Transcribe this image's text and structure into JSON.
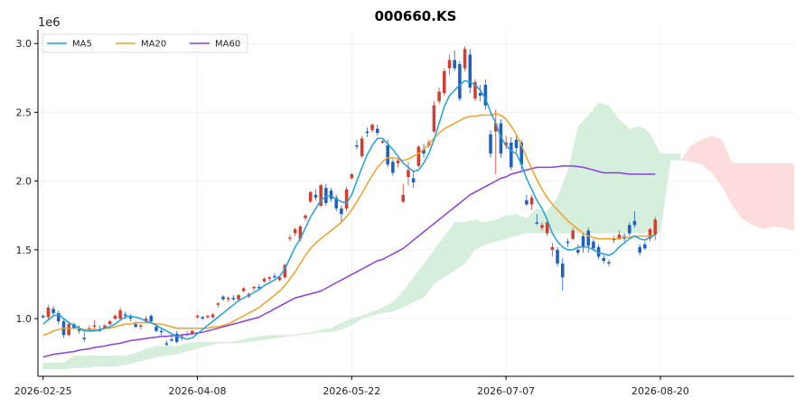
{
  "chart_data": {
    "type": "candlestick",
    "title": "000660.KS",
    "y_scale_label": "1e6",
    "ylim": [
      0.58,
      3.1
    ],
    "y_ticks": [
      1.0,
      1.5,
      2.0,
      2.5,
      3.0
    ],
    "y_tick_labels": [
      "1.0",
      "1.5",
      "2.0",
      "2.5",
      "3.0"
    ],
    "x_ticks": [
      "2026-02-25",
      "2026-04-08",
      "2026-05-22",
      "2026-07-07",
      "2026-08-20"
    ],
    "x_tick_index": [
      0,
      30,
      60,
      90,
      120
    ],
    "x_range": [
      -1,
      146
    ],
    "grid": true,
    "legend": {
      "placement": "top-left",
      "entries": [
        "MA5",
        "MA20",
        "MA60"
      ]
    },
    "colors": {
      "up": "#d23f31",
      "down": "#1f5fbf",
      "ma5": "#1aa3e0",
      "ma20": "#f0a020",
      "ma60": "#8a3fe0",
      "cloud_green": "#d6efdc",
      "cloud_red": "#fcdcdc"
    },
    "ohlc": [
      [
        1.02,
        1.03,
        1.0,
        1.01
      ],
      [
        1.01,
        1.1,
        0.99,
        1.08
      ],
      [
        1.07,
        1.09,
        1.02,
        1.04
      ],
      [
        1.04,
        1.06,
        0.96,
        0.98
      ],
      [
        0.98,
        1.0,
        0.86,
        0.88
      ],
      [
        0.88,
        0.98,
        0.87,
        0.96
      ],
      [
        0.96,
        0.97,
        0.92,
        0.93
      ],
      [
        0.92,
        0.95,
        0.89,
        0.91
      ],
      [
        0.86,
        0.9,
        0.83,
        0.85
      ],
      [
        0.92,
        0.95,
        0.9,
        0.93
      ],
      [
        0.94,
        0.99,
        0.92,
        0.95
      ],
      [
        0.92,
        0.95,
        0.9,
        0.91
      ],
      [
        0.93,
        0.96,
        0.92,
        0.95
      ],
      [
        0.96,
        0.99,
        0.95,
        0.98
      ],
      [
        1.0,
        1.03,
        0.99,
        1.02
      ],
      [
        1.0,
        1.08,
        0.99,
        1.06
      ],
      [
        1.03,
        1.05,
        1.0,
        1.02
      ],
      [
        1.01,
        1.03,
        0.98,
        1.0
      ],
      [
        0.96,
        0.98,
        0.93,
        0.94
      ],
      [
        0.94,
        0.96,
        0.92,
        0.95
      ],
      [
        0.98,
        1.02,
        0.97,
        1.0
      ],
      [
        1.02,
        1.03,
        0.97,
        0.98
      ],
      [
        0.94,
        0.96,
        0.9,
        0.91
      ],
      [
        0.91,
        0.93,
        0.88,
        0.9
      ],
      [
        0.82,
        0.84,
        0.8,
        0.81
      ],
      [
        0.85,
        0.87,
        0.83,
        0.84
      ],
      [
        0.89,
        0.91,
        0.82,
        0.83
      ],
      [
        0.86,
        0.89,
        0.84,
        0.87
      ],
      [
        0.88,
        0.91,
        0.87,
        0.89
      ],
      [
        0.89,
        0.92,
        0.88,
        0.91
      ],
      [
        1.01,
        1.03,
        1.0,
        1.02
      ],
      [
        1.01,
        1.02,
        0.99,
        1.0
      ],
      [
        1.01,
        1.03,
        1.0,
        1.02
      ],
      [
        1.01,
        1.04,
        1.0,
        1.03
      ],
      [
        1.1,
        1.12,
        1.08,
        1.11
      ],
      [
        1.16,
        1.17,
        1.13,
        1.14
      ],
      [
        1.14,
        1.16,
        1.12,
        1.15
      ],
      [
        1.15,
        1.17,
        1.13,
        1.14
      ],
      [
        1.14,
        1.18,
        1.13,
        1.17
      ],
      [
        1.2,
        1.23,
        1.19,
        1.22
      ],
      [
        1.16,
        1.19,
        1.15,
        1.18
      ],
      [
        1.22,
        1.24,
        1.2,
        1.23
      ],
      [
        1.23,
        1.25,
        1.21,
        1.22
      ],
      [
        1.27,
        1.3,
        1.26,
        1.29
      ],
      [
        1.29,
        1.31,
        1.27,
        1.3
      ],
      [
        1.31,
        1.33,
        1.29,
        1.3
      ],
      [
        1.28,
        1.31,
        1.27,
        1.3
      ],
      [
        1.3,
        1.4,
        1.29,
        1.39
      ],
      [
        1.58,
        1.61,
        1.56,
        1.59
      ],
      [
        1.62,
        1.66,
        1.6,
        1.65
      ],
      [
        1.58,
        1.68,
        1.56,
        1.67
      ],
      [
        1.73,
        1.76,
        1.71,
        1.75
      ],
      [
        1.85,
        1.93,
        1.84,
        1.92
      ],
      [
        1.9,
        1.94,
        1.86,
        1.88
      ],
      [
        1.82,
        1.98,
        1.81,
        1.97
      ],
      [
        1.95,
        1.98,
        1.82,
        1.84
      ],
      [
        1.93,
        1.95,
        1.85,
        1.87
      ],
      [
        1.88,
        1.9,
        1.78,
        1.8
      ],
      [
        1.8,
        1.82,
        1.7,
        1.76
      ],
      [
        1.8,
        1.96,
        1.78,
        1.94
      ],
      [
        2.02,
        2.06,
        2.01,
        2.05
      ],
      [
        2.26,
        2.3,
        2.23,
        2.25
      ],
      [
        2.18,
        2.33,
        2.17,
        2.31
      ],
      [
        2.36,
        2.39,
        2.32,
        2.35
      ],
      [
        2.37,
        2.42,
        2.35,
        2.41
      ],
      [
        2.38,
        2.41,
        2.33,
        2.35
      ],
      [
        2.28,
        2.3,
        2.27,
        2.29
      ],
      [
        2.26,
        2.3,
        2.1,
        2.12
      ],
      [
        2.14,
        2.16,
        2.04,
        2.06
      ],
      [
        2.13,
        2.17,
        2.1,
        2.15
      ],
      [
        1.85,
        1.98,
        1.84,
        1.9
      ],
      [
        2.03,
        2.14,
        1.97,
        2.08
      ],
      [
        2.02,
        2.07,
        1.95,
        1.99
      ],
      [
        2.11,
        2.26,
        2.1,
        2.25
      ],
      [
        2.23,
        2.27,
        2.17,
        2.2
      ],
      [
        2.26,
        2.3,
        2.24,
        2.28
      ],
      [
        2.36,
        2.58,
        2.35,
        2.55
      ],
      [
        2.58,
        2.68,
        2.56,
        2.65
      ],
      [
        2.64,
        2.82,
        2.62,
        2.8
      ],
      [
        2.82,
        2.92,
        2.77,
        2.88
      ],
      [
        2.88,
        2.95,
        2.8,
        2.82
      ],
      [
        2.85,
        2.87,
        2.58,
        2.6
      ],
      [
        2.82,
        2.98,
        2.8,
        2.96
      ],
      [
        2.92,
        2.96,
        2.64,
        2.68
      ],
      [
        2.6,
        2.74,
        2.58,
        2.72
      ],
      [
        2.64,
        2.7,
        2.58,
        2.62
      ],
      [
        2.7,
        2.74,
        2.52,
        2.55
      ],
      [
        2.34,
        2.37,
        2.17,
        2.2
      ],
      [
        2.36,
        2.52,
        2.05,
        2.42
      ],
      [
        2.42,
        2.45,
        2.17,
        2.2
      ],
      [
        2.26,
        2.33,
        2.23,
        2.28
      ],
      [
        2.28,
        2.32,
        2.08,
        2.1
      ],
      [
        2.3,
        2.33,
        2.21,
        2.24
      ],
      [
        2.28,
        2.3,
        2.08,
        2.12
      ],
      [
        1.86,
        1.9,
        1.82,
        1.83
      ],
      [
        1.83,
        1.9,
        1.79,
        1.88
      ],
      [
        1.7,
        1.76,
        1.68,
        1.69
      ],
      [
        1.66,
        1.7,
        1.64,
        1.68
      ],
      [
        1.62,
        1.72,
        1.6,
        1.7
      ],
      [
        1.5,
        1.55,
        1.45,
        1.52
      ],
      [
        1.5,
        1.52,
        1.38,
        1.4
      ],
      [
        1.4,
        1.44,
        1.2,
        1.3
      ],
      [
        1.56,
        1.58,
        1.52,
        1.55
      ],
      [
        1.58,
        1.66,
        1.57,
        1.64
      ],
      [
        1.5,
        1.54,
        1.46,
        1.48
      ],
      [
        1.6,
        1.62,
        1.48,
        1.52
      ],
      [
        1.64,
        1.66,
        1.48,
        1.53
      ],
      [
        1.56,
        1.58,
        1.49,
        1.51
      ],
      [
        1.52,
        1.54,
        1.43,
        1.45
      ],
      [
        1.44,
        1.46,
        1.4,
        1.42
      ],
      [
        1.41,
        1.43,
        1.38,
        1.4
      ],
      [
        1.58,
        1.6,
        1.55,
        1.57
      ],
      [
        1.58,
        1.64,
        1.57,
        1.61
      ],
      [
        1.6,
        1.62,
        1.56,
        1.58
      ],
      [
        1.68,
        1.7,
        1.6,
        1.62
      ],
      [
        1.71,
        1.78,
        1.66,
        1.68
      ],
      [
        1.52,
        1.54,
        1.46,
        1.48
      ],
      [
        1.54,
        1.56,
        1.5,
        1.51
      ],
      [
        1.58,
        1.66,
        1.56,
        1.65
      ],
      [
        1.61,
        1.74,
        1.57,
        1.72
      ]
    ],
    "ma5": [
      0.96,
      0.99,
      1.02,
      1.03,
      1.0,
      0.97,
      0.95,
      0.93,
      0.91,
      0.91,
      0.91,
      0.92,
      0.93,
      0.94,
      0.96,
      0.99,
      1.01,
      1.02,
      1.01,
      1.0,
      0.98,
      0.97,
      0.95,
      0.93,
      0.91,
      0.89,
      0.87,
      0.86,
      0.85,
      0.86,
      0.89,
      0.92,
      0.95,
      0.98,
      1.01,
      1.04,
      1.07,
      1.1,
      1.13,
      1.15,
      1.17,
      1.19,
      1.21,
      1.24,
      1.26,
      1.28,
      1.31,
      1.36,
      1.44,
      1.52,
      1.58,
      1.66,
      1.74,
      1.8,
      1.86,
      1.89,
      1.89,
      1.87,
      1.85,
      1.84,
      1.9,
      2.0,
      2.1,
      2.19,
      2.26,
      2.31,
      2.31,
      2.27,
      2.23,
      2.18,
      2.13,
      2.1,
      2.07,
      2.08,
      2.13,
      2.2,
      2.3,
      2.42,
      2.54,
      2.62,
      2.66,
      2.7,
      2.73,
      2.72,
      2.7,
      2.66,
      2.6,
      2.5,
      2.42,
      2.32,
      2.26,
      2.22,
      2.2,
      2.12,
      2.02,
      1.94,
      1.86,
      1.8,
      1.72,
      1.62,
      1.56,
      1.52,
      1.5,
      1.5,
      1.52,
      1.52,
      1.52,
      1.5,
      1.48,
      1.47,
      1.46,
      1.48,
      1.52,
      1.55,
      1.58,
      1.6,
      1.58,
      1.57,
      1.59,
      1.61
    ],
    "ma20": [
      0.88,
      0.89,
      0.91,
      0.92,
      0.93,
      0.93,
      0.93,
      0.93,
      0.92,
      0.92,
      0.92,
      0.92,
      0.93,
      0.93,
      0.94,
      0.95,
      0.96,
      0.96,
      0.97,
      0.97,
      0.97,
      0.97,
      0.96,
      0.96,
      0.95,
      0.94,
      0.93,
      0.93,
      0.93,
      0.93,
      0.93,
      0.93,
      0.93,
      0.94,
      0.94,
      0.95,
      0.96,
      0.98,
      1.0,
      1.02,
      1.04,
      1.06,
      1.08,
      1.11,
      1.14,
      1.17,
      1.2,
      1.24,
      1.29,
      1.34,
      1.4,
      1.46,
      1.51,
      1.55,
      1.58,
      1.61,
      1.64,
      1.67,
      1.7,
      1.74,
      1.79,
      1.85,
      1.91,
      1.98,
      2.04,
      2.1,
      2.14,
      2.17,
      2.17,
      2.16,
      2.15,
      2.16,
      2.18,
      2.2,
      2.23,
      2.27,
      2.31,
      2.35,
      2.38,
      2.4,
      2.42,
      2.44,
      2.46,
      2.47,
      2.47,
      2.48,
      2.48,
      2.48,
      2.49,
      2.48,
      2.45,
      2.4,
      2.34,
      2.26,
      2.17,
      2.09,
      2.01,
      1.94,
      1.88,
      1.83,
      1.79,
      1.75,
      1.71,
      1.68,
      1.65,
      1.62,
      1.6,
      1.59,
      1.58,
      1.58,
      1.58,
      1.58,
      1.58,
      1.59,
      1.59,
      1.6,
      1.6,
      1.6,
      1.6,
      1.61
    ],
    "ma60": [
      0.72,
      0.73,
      0.74,
      0.745,
      0.75,
      0.755,
      0.76,
      0.77,
      0.775,
      0.78,
      0.79,
      0.795,
      0.8,
      0.81,
      0.815,
      0.82,
      0.83,
      0.84,
      0.845,
      0.85,
      0.855,
      0.86,
      0.865,
      0.87,
      0.87,
      0.875,
      0.875,
      0.88,
      0.885,
      0.89,
      0.895,
      0.9,
      0.91,
      0.92,
      0.93,
      0.94,
      0.95,
      0.96,
      0.97,
      0.98,
      0.99,
      1.0,
      1.01,
      1.03,
      1.05,
      1.07,
      1.09,
      1.11,
      1.13,
      1.15,
      1.16,
      1.17,
      1.18,
      1.19,
      1.2,
      1.22,
      1.24,
      1.26,
      1.28,
      1.3,
      1.32,
      1.34,
      1.36,
      1.38,
      1.4,
      1.42,
      1.43,
      1.45,
      1.47,
      1.49,
      1.51,
      1.54,
      1.57,
      1.6,
      1.63,
      1.66,
      1.69,
      1.72,
      1.75,
      1.78,
      1.81,
      1.84,
      1.87,
      1.9,
      1.92,
      1.94,
      1.96,
      1.98,
      2.0,
      2.02,
      2.03,
      2.05,
      2.06,
      2.07,
      2.08,
      2.09,
      2.1,
      2.1,
      2.1,
      2.1,
      2.105,
      2.11,
      2.11,
      2.11,
      2.105,
      2.1,
      2.09,
      2.08,
      2.07,
      2.06,
      2.06,
      2.06,
      2.06,
      2.055,
      2.05,
      2.05,
      2.05,
      2.05,
      2.05,
      2.05
    ],
    "cloud_green": {
      "x": [
        0,
        2,
        4,
        6,
        8,
        10,
        12,
        14,
        16,
        18,
        20,
        22,
        24,
        26,
        28,
        30,
        32,
        34,
        36,
        38,
        40,
        42,
        44,
        46,
        48,
        50,
        52,
        54,
        56,
        58,
        60,
        62,
        64,
        66,
        68,
        70,
        72,
        74,
        76,
        78,
        80,
        82,
        84,
        86,
        88,
        90,
        92,
        94,
        96,
        98,
        100,
        102,
        104,
        106,
        108,
        110,
        112,
        114,
        116,
        118,
        120,
        122,
        124
      ],
      "upper": [
        0.68,
        0.68,
        0.68,
        0.73,
        0.73,
        0.73,
        0.73,
        0.73,
        0.73,
        0.75,
        0.78,
        0.8,
        0.8,
        0.8,
        0.82,
        0.83,
        0.83,
        0.83,
        0.83,
        0.84,
        0.86,
        0.87,
        0.88,
        0.88,
        0.88,
        0.89,
        0.9,
        0.92,
        0.93,
        0.97,
        1.0,
        1.02,
        1.05,
        1.08,
        1.12,
        1.2,
        1.3,
        1.4,
        1.5,
        1.6,
        1.7,
        1.7,
        1.72,
        1.7,
        1.72,
        1.75,
        1.76,
        1.73,
        1.8,
        1.78,
        1.88,
        2.08,
        2.4,
        2.48,
        2.57,
        2.55,
        2.45,
        2.38,
        2.4,
        2.35,
        2.2,
        2.2,
        2.2
      ],
      "lower": [
        0.63,
        0.63,
        0.63,
        0.64,
        0.64,
        0.65,
        0.65,
        0.65,
        0.66,
        0.68,
        0.7,
        0.72,
        0.73,
        0.74,
        0.76,
        0.78,
        0.8,
        0.82,
        0.82,
        0.82,
        0.83,
        0.84,
        0.85,
        0.86,
        0.87,
        0.88,
        0.89,
        0.9,
        0.9,
        0.92,
        0.95,
        1.0,
        1.02,
        1.04,
        1.05,
        1.08,
        1.12,
        1.15,
        1.25,
        1.3,
        1.35,
        1.4,
        1.5,
        1.54,
        1.56,
        1.58,
        1.6,
        1.62,
        1.62,
        1.62,
        1.62,
        1.62,
        1.62,
        1.62,
        1.62,
        1.62,
        1.62,
        1.62,
        1.62,
        1.62,
        1.62,
        2.15,
        2.15
      ]
    },
    "cloud_red": {
      "x": [
        124,
        126,
        128,
        130,
        132,
        134,
        136,
        138,
        140,
        142,
        144,
        146
      ],
      "upper": [
        2.15,
        2.26,
        2.3,
        2.33,
        2.3,
        2.13,
        2.13,
        2.13,
        2.13,
        2.13,
        2.13,
        2.13
      ],
      "lower": [
        2.15,
        2.14,
        2.12,
        2.06,
        1.96,
        1.82,
        1.72,
        1.68,
        1.65,
        1.67,
        1.66,
        1.64
      ]
    }
  }
}
